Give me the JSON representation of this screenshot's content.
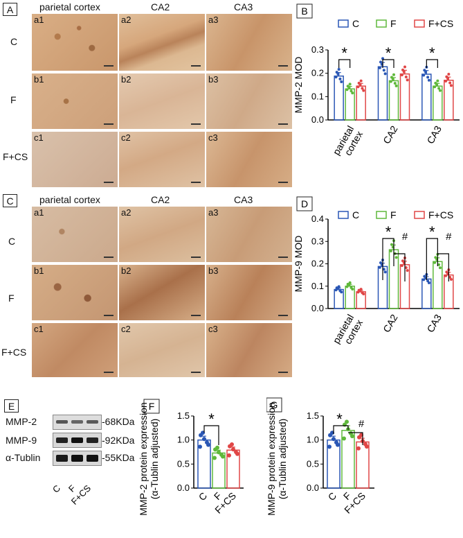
{
  "panels": {
    "A": {
      "label": "A",
      "col_titles": [
        "parietal cortex",
        "CA2",
        "CA3"
      ],
      "row_labels": [
        "C",
        "F",
        "F+CS"
      ],
      "tiles": [
        [
          "a1",
          "a2",
          "a3"
        ],
        [
          "b1",
          "b2",
          "b3"
        ],
        [
          "c1",
          "c2",
          "c3"
        ]
      ]
    },
    "C": {
      "label": "C",
      "col_titles": [
        "parietal cortex",
        "CA2",
        "CA3"
      ],
      "row_labels": [
        "C",
        "F",
        "F+CS"
      ],
      "tiles": [
        [
          "a1",
          "a2",
          "a3"
        ],
        [
          "b1",
          "b2",
          "b3"
        ],
        [
          "c1",
          "c2",
          "c3"
        ]
      ]
    },
    "E": {
      "label": "E",
      "bands": [
        {
          "name": "MMP-2",
          "size": "-68KDa"
        },
        {
          "name": "MMP-9",
          "size": "-92KDa"
        },
        {
          "name": "α-Tublin",
          "size": "-55KDa"
        }
      ],
      "lanes": [
        "C",
        "F",
        "F+CS"
      ]
    }
  },
  "legend": [
    "C",
    "F",
    "F+CS"
  ],
  "colors": {
    "C": "#2a57b5",
    "F": "#5fb83b",
    "F+CS": "#e04646"
  },
  "chart_data": [
    {
      "id": "B",
      "label": "B",
      "type": "bar",
      "ylabel": "MMP-2 MOD",
      "ylim": [
        0,
        0.3
      ],
      "yticks": [
        "0.0",
        "0.1",
        "0.2",
        "0.3"
      ],
      "categories": [
        "parietal cortex",
        "CA2",
        "CA3"
      ],
      "series": [
        {
          "name": "C",
          "values": [
            0.188,
            0.228,
            0.196
          ]
        },
        {
          "name": "F",
          "values": [
            0.133,
            0.168,
            0.145
          ]
        },
        {
          "name": "F+CS",
          "values": [
            0.145,
            0.197,
            0.17
          ]
        }
      ],
      "annotations": [
        "*",
        "*",
        "*"
      ]
    },
    {
      "id": "D",
      "label": "D",
      "type": "bar",
      "ylabel": "MMP-9 MOD",
      "ylim": [
        0,
        0.4
      ],
      "yticks": [
        "0.0",
        "0.1",
        "0.2",
        "0.3",
        "0.4"
      ],
      "categories": [
        "parietal cortex",
        "CA2",
        "CA3"
      ],
      "series": [
        {
          "name": "C",
          "values": [
            0.085,
            0.188,
            0.132
          ]
        },
        {
          "name": "F",
          "values": [
            0.1,
            0.263,
            0.21
          ]
        },
        {
          "name": "F+CS",
          "values": [
            0.075,
            0.196,
            0.15
          ]
        }
      ],
      "annotations": [
        "*",
        "#",
        "*",
        "#"
      ]
    },
    {
      "id": "F",
      "label": "F",
      "type": "bar",
      "ylabel": "MMP-2 protein expression",
      "ylabel2": "(α-Tublin adjusted)",
      "ylim": [
        0,
        1.5
      ],
      "yticks": [
        "0.0",
        "0.5",
        "1.0",
        "1.5"
      ],
      "categories": [
        "C",
        "F",
        "F+CS"
      ],
      "values": [
        1.0,
        0.73,
        0.79
      ],
      "annotations": [
        "*"
      ]
    },
    {
      "id": "G",
      "label": "G",
      "type": "bar",
      "ylabel": "MMP-9 protein expression",
      "ylabel2": "(α-Tublin adjusted)",
      "ylim": [
        0,
        1.5
      ],
      "yticks": [
        "0.0",
        "0.5",
        "1.0",
        "1.5"
      ],
      "categories": [
        "C",
        "F",
        "F+CS"
      ],
      "values": [
        1.0,
        1.2,
        0.96
      ],
      "annotations": [
        "*",
        "#"
      ]
    }
  ]
}
